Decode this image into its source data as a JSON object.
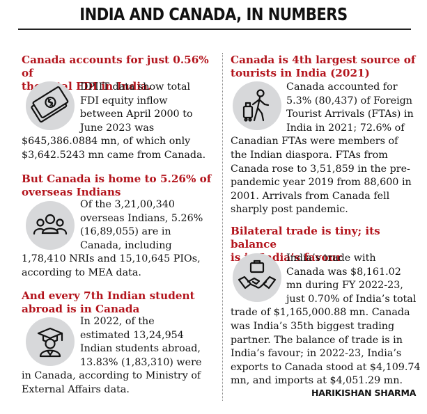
{
  "title": "INDIA AND CANADA, IN NUMBERS",
  "byline": "HARIKISHAN SHARMA",
  "left": {
    "fdi": {
      "heading": [
        "Canada accounts for just 0.56% of",
        "the total FDI in India."
      ],
      "text": [
        "DPIIT data show total",
        "FDI equity inflow",
        "between April 2000 to",
        "June 2023 was",
        "$645,386.0884 mn, of which only",
        "$3,642.5243 mn came from Canada."
      ],
      "icon": "money-icon"
    },
    "diaspora": {
      "heading": [
        "But Canada is home to 5.26% of",
        "overseas Indians"
      ],
      "text": [
        "Of the 3,21,00,340",
        "overseas Indians, 5.26%",
        "(16,89,055) are in",
        "Canada, including",
        "1,78,410 NRIs and 15,10,645 PIOs,",
        "according to MEA data."
      ],
      "icon": "people-icon"
    },
    "students": {
      "heading": [
        "And every 7th Indian student",
        "abroad is in Canada"
      ],
      "text": [
        "In 2022, of the",
        "estimated 13,24,954",
        "Indian students abroad,",
        "13.83% (1,83,310) were",
        "in Canada, according to Ministry of",
        "External Affairs data."
      ],
      "icon": "graduate-icon"
    }
  },
  "right": {
    "tourists": {
      "heading": [
        "Canada is 4th largest source of",
        "tourists in India (2021)"
      ],
      "text": [
        "Canada accounted for",
        "5.3% (80,437) of Foreign",
        "Tourist Arrivals (FTAs) in",
        "India in 2021; 72.6% of",
        "Canadian FTAs were members of",
        "the Indian diaspora. FTAs from",
        "Canada rose to 3,51,859 in the pre-",
        "pandemic year 2019 from 88,600 in",
        "2001. Arrivals from Canada fell",
        "sharply post pandemic."
      ],
      "icon": "traveller-icon"
    },
    "trade": {
      "heading": [
        "Bilateral trade is tiny; its balance",
        "is in India’s favour"
      ],
      "text": [
        "India’s trade with",
        "Canada was $8,161.02",
        "mn during FY 2022-23,",
        "just 0.70% of India’s total",
        "trade of $1,165,000.88 mn. Canada",
        "was India’s 35th biggest trading",
        "partner. The balance of trade is in",
        "India’s favour; in 2022-23, India’s",
        "exports to Canada stood at $4,109.74",
        "mn, and imports at $4,051.29 mn."
      ],
      "icon": "handshake-icon"
    }
  }
}
